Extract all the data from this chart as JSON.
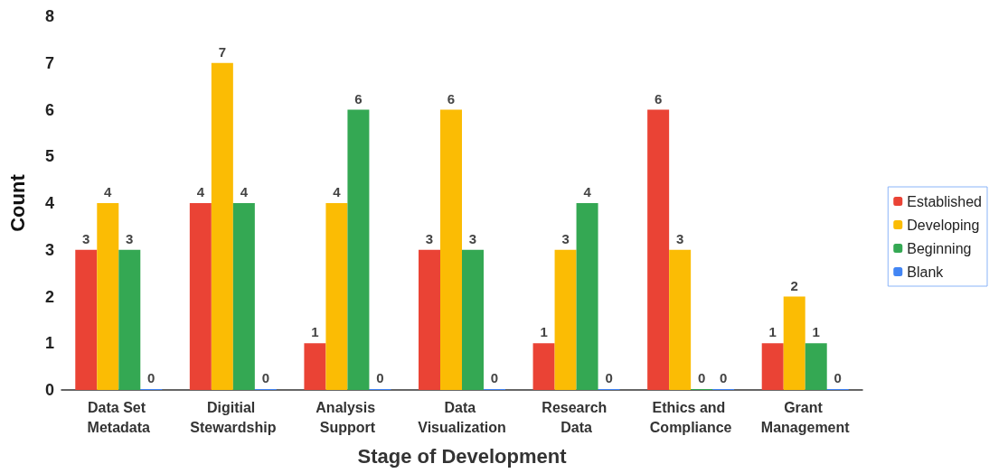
{
  "chart_data": {
    "type": "bar",
    "xlabel": "Stage of Development",
    "ylabel": "Count",
    "categories": [
      "Data Set Metadata",
      "Digitial Stewardship",
      "Analysis Support",
      "Data Visualization",
      "Research Data",
      "Ethics and Compliance",
      "Grant Management"
    ],
    "series": [
      {
        "name": "Established",
        "color": "#ea4335",
        "values": [
          3,
          4,
          1,
          3,
          1,
          6,
          1
        ]
      },
      {
        "name": "Developing",
        "color": "#fbbc04",
        "values": [
          4,
          7,
          4,
          6,
          3,
          3,
          2
        ]
      },
      {
        "name": "Beginning",
        "color": "#34a853",
        "values": [
          3,
          4,
          6,
          3,
          4,
          0,
          1
        ]
      },
      {
        "name": "Blank",
        "color": "#4285f4",
        "values": [
          0,
          0,
          0,
          0,
          0,
          0,
          0
        ]
      }
    ],
    "ylim": [
      0,
      8
    ],
    "yticks": [
      0,
      1,
      2,
      3,
      4,
      5,
      6,
      7,
      8
    ],
    "grid": false,
    "legend": "right",
    "data_labels": true
  }
}
